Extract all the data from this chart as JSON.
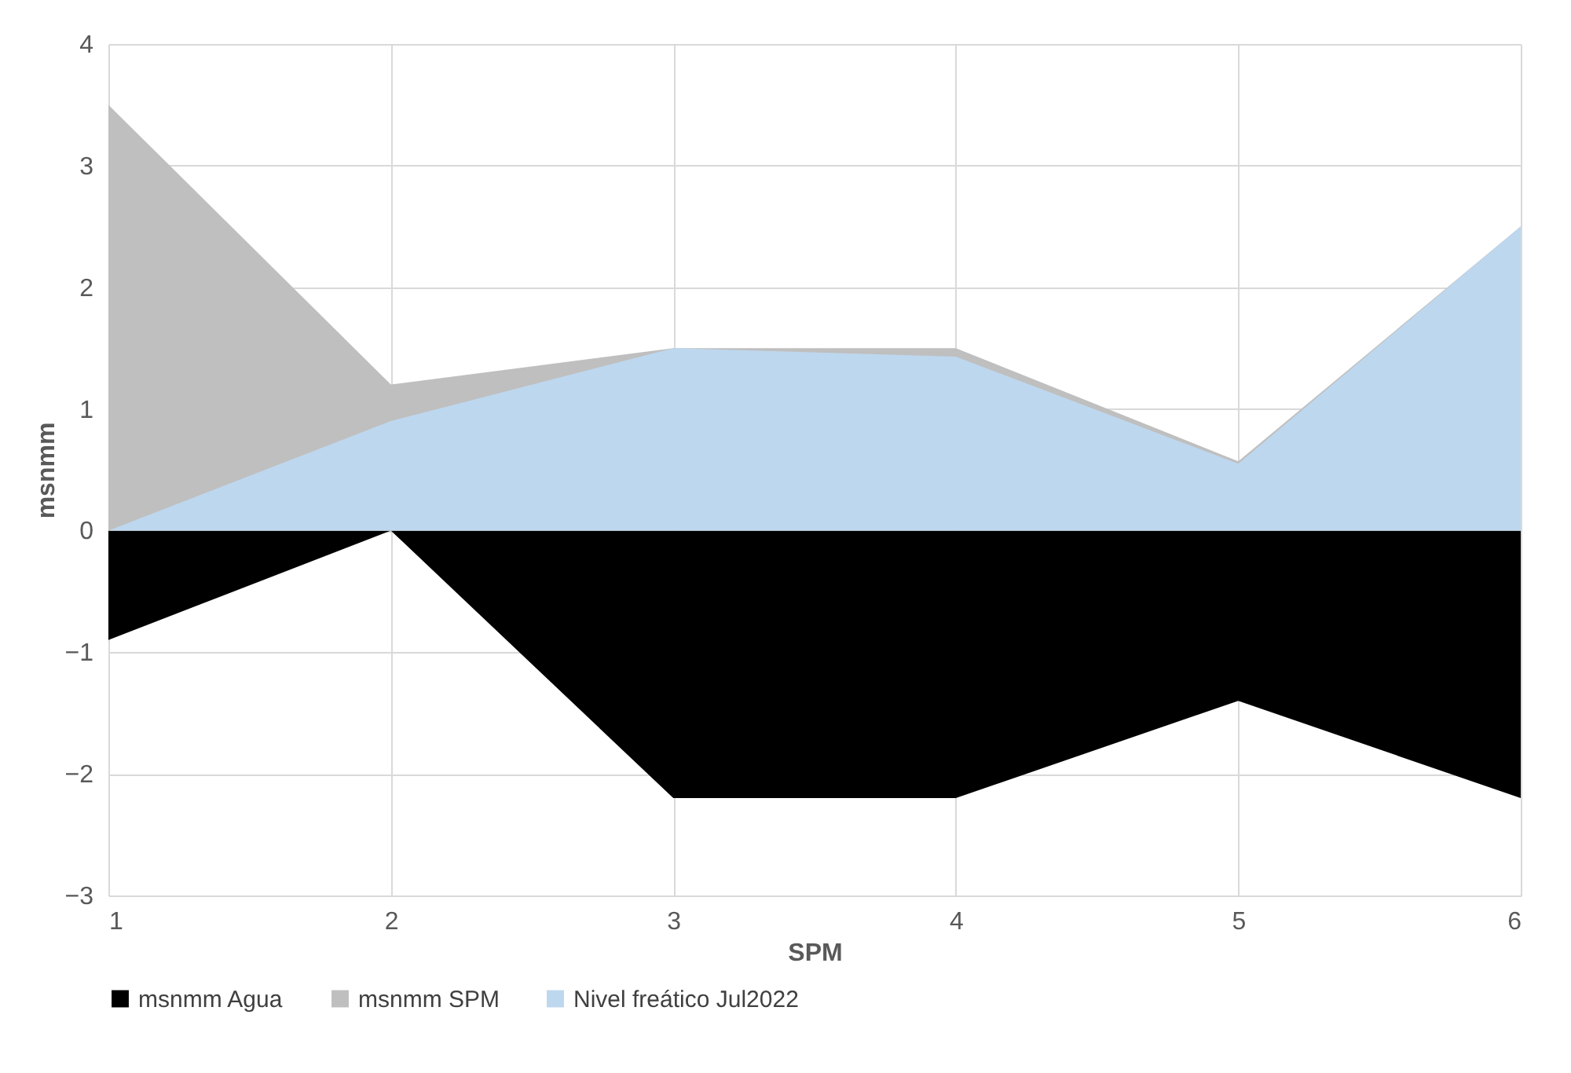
{
  "chart_data": {
    "type": "area",
    "xlabel": "SPM",
    "ylabel": "msnmm",
    "x": [
      1,
      2,
      3,
      4,
      5,
      6
    ],
    "xlim": [
      1,
      6
    ],
    "xticks": [
      1,
      2,
      3,
      4,
      5,
      6
    ],
    "ylim": [
      -3,
      4
    ],
    "yticks": [
      -3,
      -2,
      -1,
      0,
      1,
      2,
      3,
      4
    ],
    "grid": true,
    "legend": "bottom",
    "series": [
      {
        "name": "msnmm Agua",
        "color": "#000000",
        "values": [
          -0.9,
          0,
          -2.2,
          -2.2,
          -1.4,
          -2.2
        ]
      },
      {
        "name": "msnmm SPM",
        "color": "#bfbfbf",
        "values": [
          3.5,
          1.2,
          1.5,
          1.5,
          0.57,
          2.5
        ]
      },
      {
        "name": "Nivel freático Jul2022",
        "color": "#bdd7ee",
        "values": [
          0,
          0.9,
          1.5,
          1.43,
          0.55,
          2.5
        ]
      }
    ]
  }
}
